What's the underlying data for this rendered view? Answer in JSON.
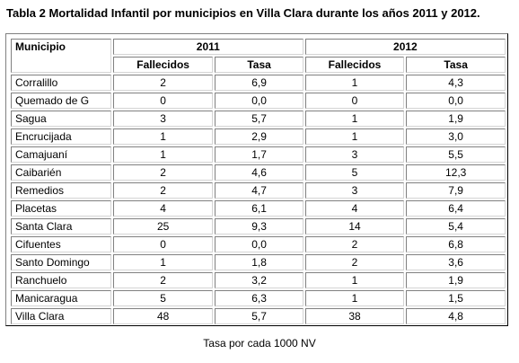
{
  "caption": "Tabla 2 Mortalidad Infantil por municipios en Villa Clara durante los años 2011 y 2012.",
  "table": {
    "header": {
      "municipio": "Municipio",
      "year1": "2011",
      "year2": "2012",
      "fallecidos": "Fallecidos",
      "tasa": "Tasa"
    },
    "rows": [
      {
        "municipio": "Corralillo",
        "f2011": "2",
        "t2011": "6,9",
        "f2012": "1",
        "t2012": "4,3"
      },
      {
        "municipio": "Quemado de G",
        "f2011": "0",
        "t2011": "0,0",
        "f2012": "0",
        "t2012": "0,0"
      },
      {
        "municipio": "Sagua",
        "f2011": "3",
        "t2011": "5,7",
        "f2012": "1",
        "t2012": "1,9"
      },
      {
        "municipio": "Encrucijada",
        "f2011": "1",
        "t2011": "2,9",
        "f2012": "1",
        "t2012": "3,0"
      },
      {
        "municipio": "Camajuaní",
        "f2011": "1",
        "t2011": "1,7",
        "f2012": "3",
        "t2012": "5,5"
      },
      {
        "municipio": "Caibarién",
        "f2011": "2",
        "t2011": "4,6",
        "f2012": "5",
        "t2012": "12,3"
      },
      {
        "municipio": "Remedios",
        "f2011": "2",
        "t2011": "4,7",
        "f2012": "3",
        "t2012": "7,9"
      },
      {
        "municipio": "Placetas",
        "f2011": "4",
        "t2011": "6,1",
        "f2012": "4",
        "t2012": "6,4"
      },
      {
        "municipio": "Santa Clara",
        "f2011": "25",
        "t2011": "9,3",
        "f2012": "14",
        "t2012": "5,4"
      },
      {
        "municipio": "Cifuentes",
        "f2011": "0",
        "t2011": "0,0",
        "f2012": "2",
        "t2012": "6,8"
      },
      {
        "municipio": "Santo Domingo",
        "f2011": "1",
        "t2011": "1,8",
        "f2012": "2",
        "t2012": "3,6"
      },
      {
        "municipio": "Ranchuelo",
        "f2011": "2",
        "t2011": "3,2",
        "f2012": "1",
        "t2012": "1,9"
      },
      {
        "municipio": "Manicaragua",
        "f2011": "5",
        "t2011": "6,3",
        "f2012": "1",
        "t2012": "1,5"
      },
      {
        "municipio": "Villa Clara",
        "f2011": "48",
        "t2011": "5,7",
        "f2012": "38",
        "t2012": "4,8"
      }
    ]
  },
  "footnote": "Tasa por cada 1000 NV"
}
